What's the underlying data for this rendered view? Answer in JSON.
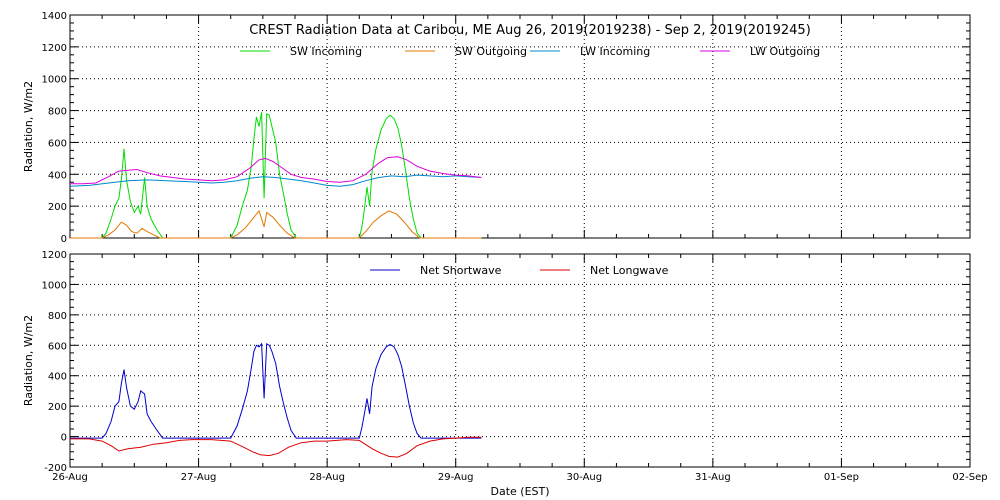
{
  "figure": {
    "title": "CREST Radiation Data at Caribou, ME   Aug 26, 2019(2019238) - Sep  2, 2019(2019245)",
    "xlabel": "Date (EST)"
  },
  "chart_data": [
    {
      "type": "line",
      "ylabel": "Radiation, W/m2",
      "ylim": [
        0,
        1400
      ],
      "yticks": [
        0,
        200,
        400,
        600,
        800,
        1000,
        1200,
        1400
      ],
      "xlim": [
        "2019-08-26",
        "2019-09-02"
      ],
      "xticks": [
        "26-Aug",
        "27-Aug",
        "28-Aug",
        "29-Aug",
        "30-Aug",
        "31-Aug",
        "01-Sep",
        "02-Sep"
      ],
      "grid": true,
      "legend_position": "top",
      "series": [
        {
          "name": "SW Incoming",
          "color": "#00dd00",
          "points": [
            [
              0.0,
              0
            ],
            [
              0.25,
              0
            ],
            [
              0.28,
              30
            ],
            [
              0.32,
              120
            ],
            [
              0.35,
              200
            ],
            [
              0.38,
              250
            ],
            [
              0.4,
              370
            ],
            [
              0.42,
              560
            ],
            [
              0.44,
              360
            ],
            [
              0.47,
              230
            ],
            [
              0.5,
              160
            ],
            [
              0.53,
              200
            ],
            [
              0.55,
              150
            ],
            [
              0.58,
              380
            ],
            [
              0.6,
              200
            ],
            [
              0.63,
              120
            ],
            [
              0.67,
              60
            ],
            [
              0.72,
              0
            ],
            [
              1.0,
              0
            ],
            [
              1.25,
              0
            ],
            [
              1.3,
              80
            ],
            [
              1.34,
              200
            ],
            [
              1.38,
              300
            ],
            [
              1.41,
              450
            ],
            [
              1.43,
              620
            ],
            [
              1.45,
              760
            ],
            [
              1.47,
              700
            ],
            [
              1.49,
              790
            ],
            [
              1.51,
              250
            ],
            [
              1.53,
              780
            ],
            [
              1.55,
              770
            ],
            [
              1.57,
              700
            ],
            [
              1.6,
              600
            ],
            [
              1.63,
              400
            ],
            [
              1.66,
              280
            ],
            [
              1.69,
              150
            ],
            [
              1.72,
              50
            ],
            [
              1.76,
              0
            ],
            [
              2.0,
              0
            ],
            [
              2.25,
              0
            ],
            [
              2.27,
              70
            ],
            [
              2.29,
              180
            ],
            [
              2.31,
              320
            ],
            [
              2.33,
              200
            ],
            [
              2.35,
              420
            ],
            [
              2.38,
              560
            ],
            [
              2.42,
              680
            ],
            [
              2.46,
              750
            ],
            [
              2.49,
              770
            ],
            [
              2.52,
              750
            ],
            [
              2.55,
              690
            ],
            [
              2.58,
              580
            ],
            [
              2.61,
              420
            ],
            [
              2.64,
              250
            ],
            [
              2.67,
              120
            ],
            [
              2.7,
              30
            ],
            [
              2.73,
              0
            ],
            [
              3.2,
              0
            ]
          ]
        },
        {
          "name": "SW Outgoing",
          "color": "#e07800",
          "points": [
            [
              0.0,
              0
            ],
            [
              0.25,
              0
            ],
            [
              0.3,
              20
            ],
            [
              0.35,
              50
            ],
            [
              0.4,
              100
            ],
            [
              0.44,
              80
            ],
            [
              0.48,
              40
            ],
            [
              0.52,
              30
            ],
            [
              0.56,
              60
            ],
            [
              0.6,
              40
            ],
            [
              0.65,
              20
            ],
            [
              0.7,
              0
            ],
            [
              1.0,
              0
            ],
            [
              1.25,
              0
            ],
            [
              1.3,
              20
            ],
            [
              1.36,
              60
            ],
            [
              1.42,
              120
            ],
            [
              1.47,
              170
            ],
            [
              1.51,
              70
            ],
            [
              1.53,
              160
            ],
            [
              1.58,
              130
            ],
            [
              1.63,
              80
            ],
            [
              1.69,
              30
            ],
            [
              1.75,
              0
            ],
            [
              2.0,
              0
            ],
            [
              2.25,
              0
            ],
            [
              2.3,
              40
            ],
            [
              2.36,
              100
            ],
            [
              2.42,
              140
            ],
            [
              2.48,
              170
            ],
            [
              2.54,
              150
            ],
            [
              2.6,
              100
            ],
            [
              2.66,
              40
            ],
            [
              2.72,
              0
            ],
            [
              3.2,
              0
            ]
          ]
        },
        {
          "name": "LW Incoming",
          "color": "#0088cc",
          "points": [
            [
              0.0,
              325
            ],
            [
              0.15,
              330
            ],
            [
              0.3,
              345
            ],
            [
              0.45,
              360
            ],
            [
              0.6,
              365
            ],
            [
              0.75,
              360
            ],
            [
              0.9,
              355
            ],
            [
              1.0,
              350
            ],
            [
              1.1,
              345
            ],
            [
              1.2,
              350
            ],
            [
              1.3,
              360
            ],
            [
              1.4,
              375
            ],
            [
              1.5,
              385
            ],
            [
              1.6,
              380
            ],
            [
              1.7,
              370
            ],
            [
              1.8,
              360
            ],
            [
              1.9,
              345
            ],
            [
              2.0,
              330
            ],
            [
              2.1,
              325
            ],
            [
              2.2,
              335
            ],
            [
              2.3,
              360
            ],
            [
              2.4,
              380
            ],
            [
              2.5,
              390
            ],
            [
              2.6,
              385
            ],
            [
              2.7,
              395
            ],
            [
              2.8,
              390
            ],
            [
              2.9,
              385
            ],
            [
              3.0,
              390
            ],
            [
              3.1,
              385
            ],
            [
              3.2,
              380
            ]
          ]
        },
        {
          "name": "LW Outgoing",
          "color": "#dd00dd",
          "points": [
            [
              0.0,
              340
            ],
            [
              0.1,
              340
            ],
            [
              0.2,
              345
            ],
            [
              0.3,
              385
            ],
            [
              0.38,
              420
            ],
            [
              0.45,
              425
            ],
            [
              0.52,
              430
            ],
            [
              0.6,
              410
            ],
            [
              0.7,
              390
            ],
            [
              0.8,
              380
            ],
            [
              0.9,
              370
            ],
            [
              1.0,
              365
            ],
            [
              1.1,
              360
            ],
            [
              1.2,
              365
            ],
            [
              1.3,
              385
            ],
            [
              1.4,
              440
            ],
            [
              1.47,
              490
            ],
            [
              1.52,
              500
            ],
            [
              1.58,
              480
            ],
            [
              1.65,
              440
            ],
            [
              1.72,
              400
            ],
            [
              1.8,
              380
            ],
            [
              1.9,
              370
            ],
            [
              2.0,
              355
            ],
            [
              2.1,
              350
            ],
            [
              2.2,
              360
            ],
            [
              2.3,
              400
            ],
            [
              2.4,
              470
            ],
            [
              2.47,
              505
            ],
            [
              2.55,
              510
            ],
            [
              2.62,
              490
            ],
            [
              2.7,
              450
            ],
            [
              2.8,
              420
            ],
            [
              2.9,
              405
            ],
            [
              3.0,
              395
            ],
            [
              3.1,
              390
            ],
            [
              3.2,
              380
            ]
          ]
        }
      ]
    },
    {
      "type": "line",
      "ylabel": "Radiation, W/m2",
      "ylim": [
        -200,
        1200
      ],
      "yticks": [
        -200,
        0,
        200,
        400,
        600,
        800,
        1000,
        1200
      ],
      "xlim": [
        "2019-08-26",
        "2019-09-02"
      ],
      "xticks": [
        "26-Aug",
        "27-Aug",
        "28-Aug",
        "29-Aug",
        "30-Aug",
        "31-Aug",
        "01-Sep",
        "02-Sep"
      ],
      "grid": true,
      "legend_position": "top",
      "series": [
        {
          "name": "Net Shortwave",
          "color": "#0000cc",
          "points": [
            [
              0.0,
              -10
            ],
            [
              0.25,
              -10
            ],
            [
              0.28,
              20
            ],
            [
              0.32,
              100
            ],
            [
              0.35,
              200
            ],
            [
              0.38,
              230
            ],
            [
              0.4,
              350
            ],
            [
              0.42,
              440
            ],
            [
              0.44,
              320
            ],
            [
              0.47,
              200
            ],
            [
              0.5,
              180
            ],
            [
              0.53,
              230
            ],
            [
              0.55,
              300
            ],
            [
              0.58,
              280
            ],
            [
              0.6,
              150
            ],
            [
              0.63,
              100
            ],
            [
              0.67,
              50
            ],
            [
              0.72,
              -10
            ],
            [
              1.0,
              -10
            ],
            [
              1.25,
              -10
            ],
            [
              1.3,
              70
            ],
            [
              1.34,
              180
            ],
            [
              1.38,
              300
            ],
            [
              1.41,
              450
            ],
            [
              1.43,
              560
            ],
            [
              1.45,
              600
            ],
            [
              1.47,
              590
            ],
            [
              1.49,
              610
            ],
            [
              1.51,
              250
            ],
            [
              1.53,
              610
            ],
            [
              1.55,
              600
            ],
            [
              1.57,
              560
            ],
            [
              1.6,
              480
            ],
            [
              1.63,
              330
            ],
            [
              1.66,
              220
            ],
            [
              1.69,
              120
            ],
            [
              1.72,
              40
            ],
            [
              1.76,
              -10
            ],
            [
              2.0,
              -10
            ],
            [
              2.25,
              -10
            ],
            [
              2.27,
              60
            ],
            [
              2.29,
              150
            ],
            [
              2.31,
              250
            ],
            [
              2.33,
              150
            ],
            [
              2.35,
              330
            ],
            [
              2.38,
              450
            ],
            [
              2.42,
              540
            ],
            [
              2.46,
              590
            ],
            [
              2.49,
              605
            ],
            [
              2.52,
              590
            ],
            [
              2.55,
              540
            ],
            [
              2.58,
              460
            ],
            [
              2.61,
              330
            ],
            [
              2.64,
              200
            ],
            [
              2.67,
              90
            ],
            [
              2.7,
              20
            ],
            [
              2.73,
              -10
            ],
            [
              3.2,
              -10
            ]
          ]
        },
        {
          "name": "Net Longwave",
          "color": "#dd0000",
          "points": [
            [
              0.0,
              -15
            ],
            [
              0.15,
              -15
            ],
            [
              0.25,
              -30
            ],
            [
              0.32,
              -60
            ],
            [
              0.38,
              -95
            ],
            [
              0.45,
              -80
            ],
            [
              0.55,
              -70
            ],
            [
              0.65,
              -50
            ],
            [
              0.75,
              -40
            ],
            [
              0.85,
              -25
            ],
            [
              0.95,
              -20
            ],
            [
              1.1,
              -20
            ],
            [
              1.25,
              -30
            ],
            [
              1.35,
              -70
            ],
            [
              1.42,
              -100
            ],
            [
              1.48,
              -120
            ],
            [
              1.55,
              -125
            ],
            [
              1.62,
              -110
            ],
            [
              1.7,
              -70
            ],
            [
              1.8,
              -40
            ],
            [
              1.9,
              -30
            ],
            [
              2.0,
              -30
            ],
            [
              2.15,
              -20
            ],
            [
              2.25,
              -25
            ],
            [
              2.35,
              -80
            ],
            [
              2.42,
              -110
            ],
            [
              2.48,
              -130
            ],
            [
              2.55,
              -135
            ],
            [
              2.62,
              -110
            ],
            [
              2.7,
              -60
            ],
            [
              2.8,
              -30
            ],
            [
              2.9,
              -15
            ],
            [
              3.0,
              -10
            ],
            [
              3.1,
              -5
            ],
            [
              3.2,
              -5
            ]
          ]
        }
      ]
    }
  ]
}
